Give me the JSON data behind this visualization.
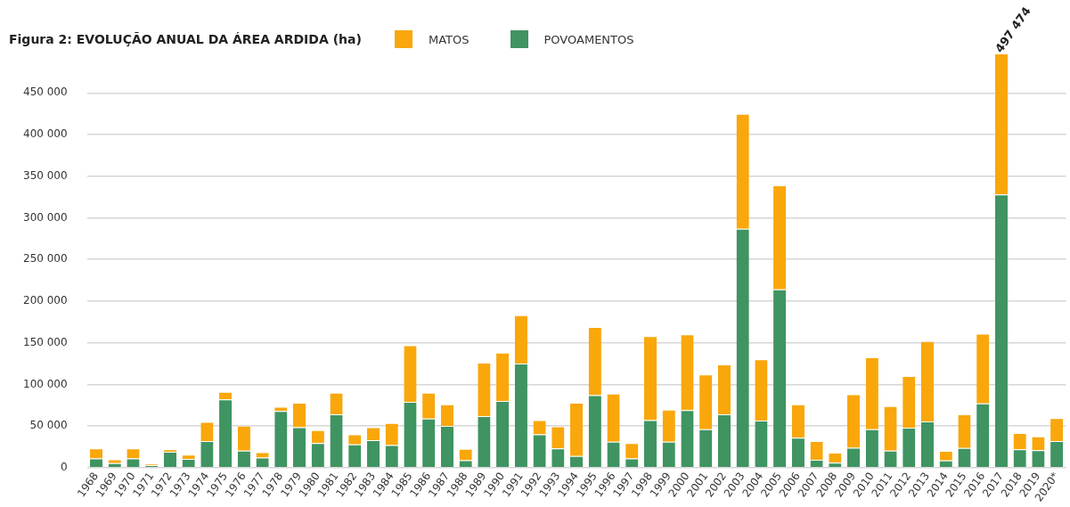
{
  "chart_data": {
    "type": "bar",
    "title": "Figura 2: EVOLUÇÃO ANUAL DA ÁREA ARDIDA (ha)",
    "stacked": true,
    "legend": "top",
    "grid": "y",
    "categories": [
      "1968",
      "1969",
      "1970",
      "1971",
      "1972",
      "1973",
      "1974",
      "1975",
      "1976",
      "1977",
      "1978",
      "1979",
      "1980",
      "1981",
      "1982",
      "1983",
      "1984",
      "1985",
      "1986",
      "1987",
      "1988",
      "1989",
      "1990",
      "1991",
      "1992",
      "1993",
      "1994",
      "1995",
      "1996",
      "1997",
      "1998",
      "1999",
      "2000",
      "2001",
      "2002",
      "2003",
      "2004",
      "2005",
      "2006",
      "2007",
      "2008",
      "2009",
      "2010",
      "2011",
      "2012",
      "2013",
      "2014",
      "2015",
      "2016",
      "2017",
      "2018",
      "2019",
      "2020*"
    ],
    "series": [
      {
        "name": "POVOAMENTOS",
        "color": "#3f9461",
        "values": [
          11000,
          5500,
          11000,
          3000,
          19000,
          10500,
          32000,
          82000,
          20500,
          12000,
          68000,
          48500,
          29500,
          64000,
          28000,
          33000,
          27000,
          79000,
          59000,
          50000,
          9000,
          62000,
          80000,
          125000,
          40000,
          23000,
          14000,
          87000,
          31000,
          11000,
          57000,
          31000,
          69000,
          46000,
          64000,
          287000,
          56500,
          214000,
          36000,
          9500,
          6000,
          24000,
          46000,
          20500,
          48000,
          55500,
          8500,
          23500,
          77000,
          328000,
          22000,
          21000,
          32000
        ]
      },
      {
        "name": "MATOS",
        "color": "#f9a70b",
        "values": [
          12000,
          4500,
          12000,
          1500,
          3000,
          5000,
          23000,
          9000,
          30000,
          6500,
          5000,
          29500,
          15500,
          26000,
          12000,
          15500,
          26500,
          68000,
          31000,
          26000,
          13500,
          64000,
          58000,
          58000,
          17000,
          26500,
          64000,
          82000,
          58000,
          18500,
          101000,
          38500,
          91000,
          66000,
          60000,
          138000,
          73500,
          125000,
          40000,
          22500,
          12000,
          64000,
          86500,
          53500,
          62000,
          96500,
          11500,
          40500,
          84000,
          169474,
          19500,
          16500,
          27500
        ]
      }
    ],
    "totals": [
      null,
      null,
      null,
      null,
      null,
      null,
      null,
      null,
      null,
      null,
      null,
      null,
      null,
      null,
      null,
      null,
      null,
      null,
      null,
      null,
      null,
      null,
      null,
      null,
      null,
      null,
      null,
      null,
      null,
      null,
      null,
      null,
      null,
      null,
      null,
      null,
      null,
      null,
      null,
      null,
      null,
      null,
      null,
      null,
      null,
      null,
      null,
      null,
      null,
      "497 474",
      null,
      null,
      null
    ],
    "ylim": [
      0,
      497474
    ],
    "yticks": [
      {
        "value": 0,
        "label": "0"
      },
      {
        "value": 50000,
        "label": "50 000"
      },
      {
        "value": 100000,
        "label": "100 000"
      },
      {
        "value": 150000,
        "label": "150 000"
      },
      {
        "value": 200000,
        "label": "200 000"
      },
      {
        "value": 250000,
        "label": "250 000"
      },
      {
        "value": 300000,
        "label": "300 000"
      },
      {
        "value": 350000,
        "label": "350 000"
      },
      {
        "value": 400000,
        "label": "400 000"
      },
      {
        "value": 450000,
        "label": "450 000"
      }
    ]
  }
}
